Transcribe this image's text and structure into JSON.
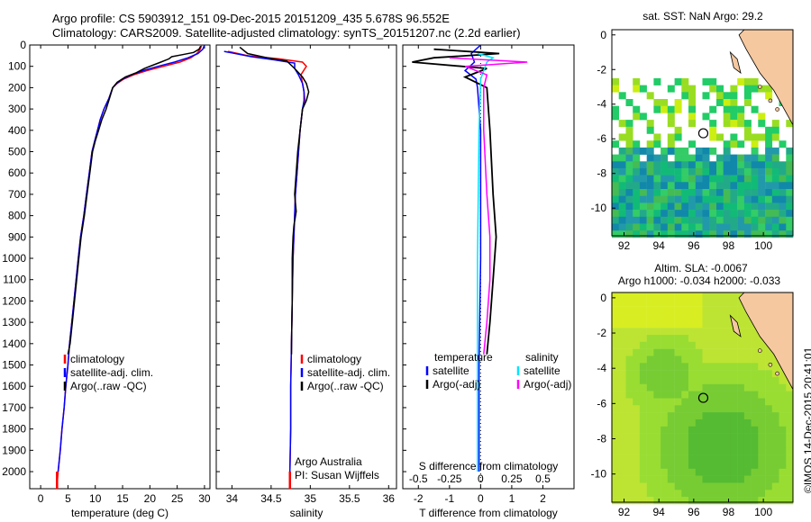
{
  "header": {
    "line1": "Argo profile: CS 5903912_151 09-Dec-2015 20151209_435 5.678S 96.552E",
    "line2": "Climatology: CARS2009. Satellite-adjusted climatology: synTS_20151207.nc (2.2d earlier)"
  },
  "colors": {
    "climatology": "#ff0000",
    "satellite": "#0000ff",
    "argo": "#000000",
    "satellite_salinity": "#00e5ff",
    "argo_salinity": "#ff00ff",
    "land": "#f5c8a0"
  },
  "chart_data": [
    {
      "type": "line",
      "panel": "temperature",
      "xlabel": "temperature (deg C)",
      "ylabel": "",
      "xlim": [
        -2,
        31
      ],
      "ylim": [
        2080,
        0
      ],
      "y_inverted": true,
      "xticks": [
        "0",
        "5",
        "10",
        "15",
        "20",
        "25",
        "30"
      ],
      "yticks": [
        "0",
        "100",
        "200",
        "300",
        "400",
        "500",
        "600",
        "700",
        "800",
        "900",
        "1000",
        "1100",
        "1200",
        "1300",
        "1400",
        "1500",
        "1600",
        "1700",
        "1800",
        "1900",
        "2000"
      ],
      "legend": [
        "climatology",
        "satellite-adj. clim.",
        "Argo(..raw -QC)"
      ],
      "series": [
        {
          "name": "climatology",
          "values": [
            [
              29.5,
              0
            ],
            [
              29.2,
              20
            ],
            [
              28.6,
              40
            ],
            [
              27.5,
              60
            ],
            [
              25.5,
              80
            ],
            [
              22.5,
              100
            ],
            [
              19.5,
              120
            ],
            [
              17,
              140
            ],
            [
              15.2,
              160
            ],
            [
              14,
              180
            ],
            [
              13.2,
              200
            ],
            [
              12.5,
              250
            ],
            [
              11.6,
              300
            ],
            [
              10.9,
              350
            ],
            [
              10.4,
              400
            ],
            [
              9.9,
              450
            ],
            [
              9.4,
              500
            ],
            [
              8.9,
              600
            ],
            [
              8.4,
              700
            ],
            [
              7.9,
              800
            ],
            [
              7.3,
              900
            ],
            [
              6.9,
              1000
            ],
            [
              6.5,
              1100
            ],
            [
              6.1,
              1200
            ],
            [
              5.7,
              1300
            ],
            [
              5.3,
              1400
            ],
            [
              5.0,
              1500
            ],
            [
              4.6,
              1600
            ],
            [
              4.3,
              1700
            ],
            [
              3.9,
              1800
            ],
            [
              3.6,
              1900
            ],
            [
              3.2,
              2000
            ],
            [
              3.0,
              2060
            ]
          ]
        },
        {
          "name": "satellite-adj. clim.",
          "values": [
            [
              30.0,
              0
            ],
            [
              29.7,
              20
            ],
            [
              28.8,
              40
            ],
            [
              27.0,
              60
            ],
            [
              24.5,
              80
            ],
            [
              21.5,
              100
            ],
            [
              18.8,
              120
            ],
            [
              16.6,
              140
            ],
            [
              15.0,
              160
            ],
            [
              13.9,
              180
            ],
            [
              13.2,
              200
            ],
            [
              12.5,
              250
            ],
            [
              11.6,
              300
            ],
            [
              10.9,
              350
            ],
            [
              10.4,
              400
            ],
            [
              9.9,
              450
            ],
            [
              9.4,
              500
            ],
            [
              8.9,
              600
            ],
            [
              8.4,
              700
            ],
            [
              7.9,
              800
            ],
            [
              7.3,
              900
            ],
            [
              6.9,
              1000
            ],
            [
              6.5,
              1100
            ],
            [
              6.1,
              1200
            ],
            [
              5.7,
              1300
            ],
            [
              5.3,
              1400
            ],
            [
              5.0,
              1500
            ],
            [
              4.6,
              1600
            ],
            [
              4.3,
              1700
            ],
            [
              3.9,
              1800
            ],
            [
              3.6,
              1900
            ],
            [
              3.2,
              2000
            ]
          ]
        },
        {
          "name": "Argo(..raw -QC)",
          "values": [
            [
              29.3,
              5
            ],
            [
              29.0,
              20
            ],
            [
              28.0,
              35
            ],
            [
              26.0,
              45
            ],
            [
              24.0,
              55
            ],
            [
              23.5,
              65
            ],
            [
              22.0,
              80
            ],
            [
              20.5,
              95
            ],
            [
              19.0,
              110
            ],
            [
              17.5,
              130
            ],
            [
              15.5,
              150
            ],
            [
              14.0,
              175
            ],
            [
              13.2,
              200
            ],
            [
              12.6,
              250
            ],
            [
              12.0,
              300
            ],
            [
              11.2,
              350
            ],
            [
              10.6,
              400
            ],
            [
              10.0,
              450
            ],
            [
              9.5,
              500
            ],
            [
              9.0,
              600
            ],
            [
              8.5,
              700
            ],
            [
              8.0,
              800
            ],
            [
              7.4,
              900
            ],
            [
              7.0,
              1000
            ],
            [
              6.6,
              1100
            ],
            [
              6.2,
              1200
            ],
            [
              5.8,
              1300
            ],
            [
              5.4,
              1400
            ],
            [
              5.0,
              1450
            ]
          ]
        }
      ]
    },
    {
      "type": "line",
      "panel": "salinity",
      "xlabel": "salinity",
      "xlim": [
        33.8,
        36.1
      ],
      "ylim": [
        2080,
        0
      ],
      "y_inverted": true,
      "xticks": [
        "34",
        "34.5",
        "35",
        "35.5",
        "36"
      ],
      "legend": [
        "climatology",
        "satellite-adj. clim.",
        "Argo(..raw -QC)"
      ],
      "annotation": [
        "Argo Australia",
        "PI: Susan Wijffels"
      ],
      "series": [
        {
          "name": "climatology",
          "values": [
            [
              33.95,
              30
            ],
            [
              34.2,
              50
            ],
            [
              34.6,
              65
            ],
            [
              34.9,
              80
            ],
            [
              34.95,
              100
            ],
            [
              34.88,
              140
            ],
            [
              34.9,
              180
            ],
            [
              34.92,
              220
            ],
            [
              34.93,
              260
            ],
            [
              34.9,
              300
            ],
            [
              34.87,
              400
            ],
            [
              34.85,
              500
            ],
            [
              34.83,
              600
            ],
            [
              34.81,
              700
            ],
            [
              34.8,
              800
            ],
            [
              34.79,
              900
            ],
            [
              34.78,
              1000
            ],
            [
              34.77,
              1200
            ],
            [
              34.76,
              1400
            ],
            [
              34.75,
              1600
            ],
            [
              34.75,
              1800
            ],
            [
              34.74,
              2000
            ],
            [
              34.74,
              2060
            ]
          ]
        },
        {
          "name": "satellite-adj. clim.",
          "values": [
            [
              33.9,
              30
            ],
            [
              34.25,
              55
            ],
            [
              34.55,
              70
            ],
            [
              34.8,
              85
            ],
            [
              34.8,
              110
            ],
            [
              34.85,
              140
            ],
            [
              34.9,
              180
            ],
            [
              34.92,
              220
            ],
            [
              34.92,
              260
            ],
            [
              34.9,
              300
            ],
            [
              34.87,
              400
            ],
            [
              34.85,
              500
            ],
            [
              34.83,
              600
            ],
            [
              34.81,
              700
            ],
            [
              34.8,
              800
            ],
            [
              34.79,
              900
            ],
            [
              34.78,
              1000
            ],
            [
              34.77,
              1200
            ],
            [
              34.76,
              1400
            ],
            [
              34.75,
              1600
            ],
            [
              34.75,
              1800
            ],
            [
              34.74,
              2000
            ]
          ]
        },
        {
          "name": "Argo(..raw -QC)",
          "values": [
            [
              34.1,
              10
            ],
            [
              34.2,
              40
            ],
            [
              34.45,
              60
            ],
            [
              34.7,
              75
            ],
            [
              34.8,
              110
            ],
            [
              34.9,
              150
            ],
            [
              34.95,
              180
            ],
            [
              34.98,
              220
            ],
            [
              34.95,
              260
            ],
            [
              34.9,
              300
            ],
            [
              34.87,
              400
            ],
            [
              34.84,
              500
            ],
            [
              34.82,
              600
            ],
            [
              34.8,
              700
            ],
            [
              34.82,
              780
            ],
            [
              34.79,
              850
            ],
            [
              34.78,
              900
            ],
            [
              34.77,
              1000
            ],
            [
              34.77,
              1200
            ],
            [
              34.76,
              1400
            ],
            [
              34.76,
              1450
            ]
          ]
        }
      ]
    },
    {
      "type": "line",
      "panel": "difference",
      "xlabel": "T difference from climatology",
      "xlabel_top": "S difference from climatology",
      "xlim": [
        -2.5,
        3.0
      ],
      "ylim": [
        2080,
        0
      ],
      "y_inverted": true,
      "xticks": [
        "-2",
        "-1",
        "0",
        "1",
        "2"
      ],
      "xticks_top": [
        "-0.5",
        "-0.25",
        "0",
        "0.25",
        "0.5"
      ],
      "legend_left": [
        "temperature",
        "satellite",
        "Argo(-adj)"
      ],
      "legend_right": [
        "salinity",
        "satellite",
        "Argo(-adj)"
      ],
      "series": [
        {
          "name": "satellite",
          "values": [
            [
              0,
              0
            ],
            [
              -0.3,
              40
            ],
            [
              -0.2,
              80
            ],
            [
              -0.5,
              120
            ],
            [
              -0.15,
              160
            ],
            [
              -0.1,
              200
            ],
            [
              0,
              400
            ],
            [
              0,
              1000
            ],
            [
              -0.05,
              1500
            ],
            [
              -0.05,
              2000
            ]
          ]
        },
        {
          "name": "Argo(-adj)",
          "values": [
            [
              -1.5,
              20
            ],
            [
              0.6,
              40
            ],
            [
              -1.5,
              60
            ],
            [
              -2.2,
              80
            ],
            [
              0.2,
              110
            ],
            [
              -0.5,
              150
            ],
            [
              0.2,
              200
            ],
            [
              0.3,
              400
            ],
            [
              0.4,
              700
            ],
            [
              0.5,
              900
            ],
            [
              0.4,
              1100
            ],
            [
              0.3,
              1300
            ],
            [
              0.2,
              1450
            ]
          ]
        },
        {
          "name": "satellite",
          "values": [
            [
              -0.1,
              40
            ],
            [
              0.4,
              60
            ],
            [
              0.2,
              80
            ],
            [
              0,
              160
            ],
            [
              -0.05,
              400
            ],
            [
              -0.1,
              1000
            ],
            [
              -0.1,
              1600
            ],
            [
              -0.1,
              2000
            ]
          ]
        },
        {
          "name": "Argo(-adj)",
          "values": [
            [
              -1.0,
              60
            ],
            [
              1.5,
              80
            ],
            [
              -0.5,
              100
            ],
            [
              0.2,
              140
            ],
            [
              0.1,
              200
            ],
            [
              0.1,
              400
            ],
            [
              0.2,
              700
            ],
            [
              0.3,
              900
            ],
            [
              0.3,
              1100
            ],
            [
              0.2,
              1300
            ],
            [
              0.1,
              1450
            ]
          ]
        }
      ]
    },
    {
      "type": "heatmap",
      "panel": "sst",
      "title": "sat. SST: NaN  Argo: 29.2",
      "xlim": [
        91.3,
        101.7
      ],
      "ylim": [
        -11.6,
        0.3
      ],
      "xticks": [
        "92",
        "94",
        "96",
        "98",
        "100"
      ],
      "yticks": [
        "0",
        "-2",
        "-4",
        "-6",
        "-8",
        "-10"
      ],
      "marker": [
        96.55,
        -5.68
      ]
    },
    {
      "type": "heatmap",
      "panel": "sla",
      "title": "Altim. SLA: -0.0067",
      "subtitle": "Argo h1000: -0.034 h2000: -0.033",
      "xlim": [
        91.3,
        101.7
      ],
      "ylim": [
        -11.6,
        0.3
      ],
      "xticks": [
        "92",
        "94",
        "96",
        "98",
        "100"
      ],
      "yticks": [
        "0",
        "-2",
        "-4",
        "-6",
        "-8",
        "-10"
      ],
      "marker": [
        96.55,
        -5.68
      ]
    }
  ],
  "credit": "©IMOS 14-Dec-2015 20:41:01"
}
